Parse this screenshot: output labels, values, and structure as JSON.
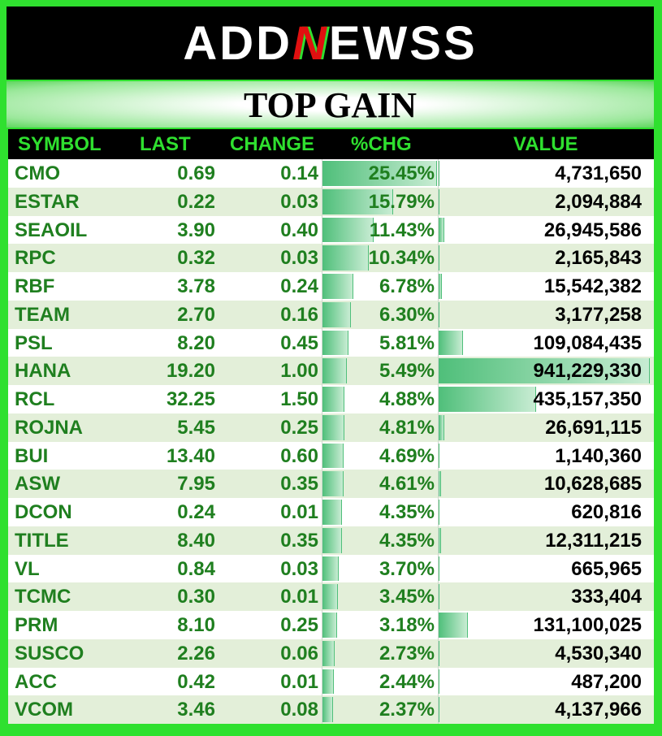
{
  "header": {
    "logo": [
      "ADD",
      "N",
      "EWSS"
    ],
    "title": "TOP GAIN"
  },
  "table": {
    "columns": [
      "SYMBOL",
      "LAST",
      "CHANGE",
      "%CHG",
      "VALUE"
    ],
    "rows": [
      [
        "CMO",
        "0.69",
        "0.14",
        "25.45%",
        "4,731,650"
      ],
      [
        "ESTAR",
        "0.22",
        "0.03",
        "15.79%",
        "2,094,884"
      ],
      [
        "SEAOIL",
        "3.90",
        "0.40",
        "11.43%",
        "26,945,586"
      ],
      [
        "RPC",
        "0.32",
        "0.03",
        "10.34%",
        "2,165,843"
      ],
      [
        "RBF",
        "3.78",
        "0.24",
        "6.78%",
        "15,542,382"
      ],
      [
        "TEAM",
        "2.70",
        "0.16",
        "6.30%",
        "3,177,258"
      ],
      [
        "PSL",
        "8.20",
        "0.45",
        "5.81%",
        "109,084,435"
      ],
      [
        "HANA",
        "19.20",
        "1.00",
        "5.49%",
        "941,229,330"
      ],
      [
        "RCL",
        "32.25",
        "1.50",
        "4.88%",
        "435,157,350"
      ],
      [
        "ROJNA",
        "5.45",
        "0.25",
        "4.81%",
        "26,691,115"
      ],
      [
        "BUI",
        "13.40",
        "0.60",
        "4.69%",
        "1,140,360"
      ],
      [
        "ASW",
        "7.95",
        "0.35",
        "4.61%",
        "10,628,685"
      ],
      [
        "DCON",
        "0.24",
        "0.01",
        "4.35%",
        "620,816"
      ],
      [
        "TITLE",
        "8.40",
        "0.35",
        "4.35%",
        "12,311,215"
      ],
      [
        "VL",
        "0.84",
        "0.03",
        "3.70%",
        "665,965"
      ],
      [
        "TCMC",
        "0.30",
        "0.01",
        "3.45%",
        "333,404"
      ],
      [
        "PRM",
        "8.10",
        "0.25",
        "3.18%",
        "131,100,025"
      ],
      [
        "SUSCO",
        "2.26",
        "0.06",
        "2.73%",
        "4,530,340"
      ],
      [
        "ACC",
        "0.42",
        "0.01",
        "2.44%",
        "487,200"
      ],
      [
        "VCOM",
        "3.46",
        "0.08",
        "2.37%",
        "4,137,966"
      ]
    ]
  }
}
